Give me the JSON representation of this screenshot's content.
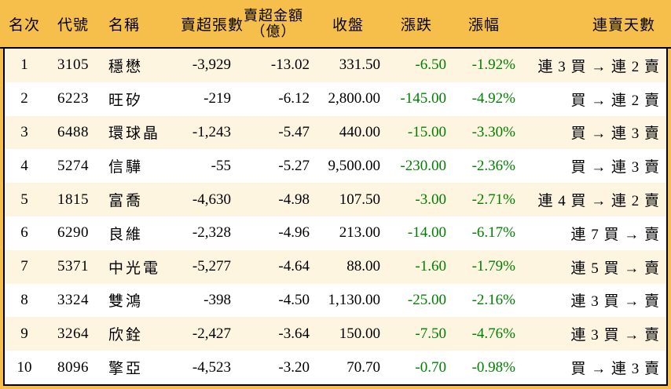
{
  "colors": {
    "frame_and_header_bg": "#F6BF4B",
    "row_alt_bg": "#FDF5E0",
    "row_bg": "#FFFFFF",
    "border": "#000000",
    "text": "#000000",
    "negative_value": "#008000"
  },
  "chart_data": {
    "type": "table",
    "columns": [
      "名次",
      "代號",
      "名稱",
      "賣超張數",
      "賣超金額（億）",
      "收盤",
      "漲跌",
      "漲幅",
      "連賣天數"
    ],
    "header": {
      "rank": "名次",
      "code": "代號",
      "name": "名稱",
      "sell_volume": "賣超張數",
      "sell_amount_l1": "賣超金額",
      "sell_amount_l2": "（億）",
      "close": "收盤",
      "change": "漲跌",
      "change_pct": "漲幅",
      "streak": "連賣天數"
    },
    "rows": [
      {
        "rank": "1",
        "code": "3105",
        "name": "穩懋",
        "sell_volume": "-3,929",
        "sell_amount": "-13.02",
        "close": "331.50",
        "change": "-6.50",
        "change_pct": "-1.92%",
        "streak": "連 3 買 → 連 2 賣"
      },
      {
        "rank": "2",
        "code": "6223",
        "name": "旺矽",
        "sell_volume": "-219",
        "sell_amount": "-6.12",
        "close": "2,800.00",
        "change": "-145.00",
        "change_pct": "-4.92%",
        "streak": "買 → 連 2 賣"
      },
      {
        "rank": "3",
        "code": "6488",
        "name": "環球晶",
        "sell_volume": "-1,243",
        "sell_amount": "-5.47",
        "close": "440.00",
        "change": "-15.00",
        "change_pct": "-3.30%",
        "streak": "買 → 連 3 賣"
      },
      {
        "rank": "4",
        "code": "5274",
        "name": "信驊",
        "sell_volume": "-55",
        "sell_amount": "-5.27",
        "close": "9,500.00",
        "change": "-230.00",
        "change_pct": "-2.36%",
        "streak": "買 → 連 3 賣"
      },
      {
        "rank": "5",
        "code": "1815",
        "name": "富喬",
        "sell_volume": "-4,630",
        "sell_amount": "-4.98",
        "close": "107.50",
        "change": "-3.00",
        "change_pct": "-2.71%",
        "streak": "連 4 買 → 連 2 賣"
      },
      {
        "rank": "6",
        "code": "6290",
        "name": "良維",
        "sell_volume": "-2,328",
        "sell_amount": "-4.96",
        "close": "213.00",
        "change": "-14.00",
        "change_pct": "-6.17%",
        "streak": "連 7 買 → 賣"
      },
      {
        "rank": "7",
        "code": "5371",
        "name": "中光電",
        "sell_volume": "-5,277",
        "sell_amount": "-4.64",
        "close": "88.00",
        "change": "-1.60",
        "change_pct": "-1.79%",
        "streak": "連 5 買 → 賣"
      },
      {
        "rank": "8",
        "code": "3324",
        "name": "雙鴻",
        "sell_volume": "-398",
        "sell_amount": "-4.50",
        "close": "1,130.00",
        "change": "-25.00",
        "change_pct": "-2.16%",
        "streak": "連 3 買 → 賣"
      },
      {
        "rank": "9",
        "code": "3264",
        "name": "欣銓",
        "sell_volume": "-2,427",
        "sell_amount": "-3.64",
        "close": "150.00",
        "change": "-7.50",
        "change_pct": "-4.76%",
        "streak": "連 3 買 → 賣"
      },
      {
        "rank": "10",
        "code": "8096",
        "name": "擎亞",
        "sell_volume": "-4,523",
        "sell_amount": "-3.20",
        "close": "70.70",
        "change": "-0.70",
        "change_pct": "-0.98%",
        "streak": "買 → 連 3 賣"
      }
    ]
  }
}
